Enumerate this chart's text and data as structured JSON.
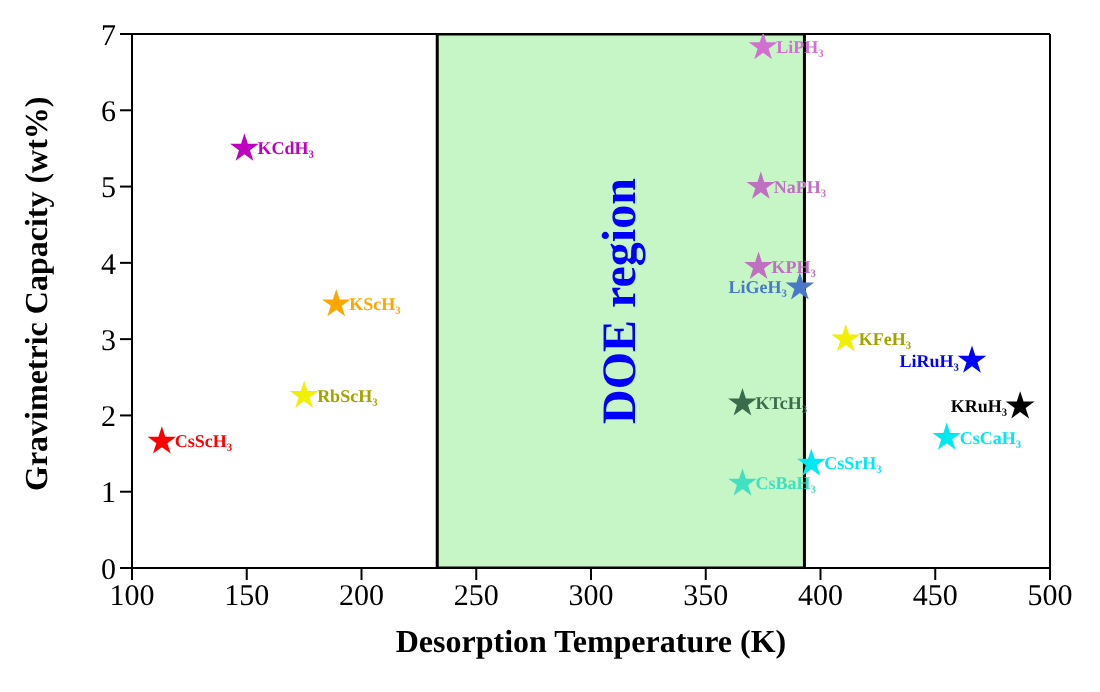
{
  "chart_data": {
    "type": "scatter",
    "xlabel": "Desorption Temperature (K)",
    "ylabel": "Gravimetric Capacity (wt%)",
    "xlim": [
      100,
      500
    ],
    "ylim": [
      0,
      7
    ],
    "xticks": [
      100,
      150,
      200,
      250,
      300,
      350,
      400,
      450,
      500
    ],
    "yticks": [
      0,
      1,
      2,
      3,
      4,
      5,
      6,
      7
    ],
    "grid": false,
    "legend": false,
    "marker": "star",
    "bands": [
      {
        "axis": "x",
        "from": 233,
        "to": 393,
        "label": "DOE region",
        "color": "#c6f5c6"
      }
    ],
    "series": [
      {
        "name": "CsScH₃",
        "color": "#ff0000",
        "x": [
          113
        ],
        "values": [
          1.66
        ]
      },
      {
        "name": "KCdH₃",
        "color": "#c000c0",
        "x": [
          149
        ],
        "values": [
          5.5
        ]
      },
      {
        "name": "KScH₃",
        "color": "#ffa500",
        "x": [
          189
        ],
        "values": [
          3.46
        ]
      },
      {
        "name": "RbScH₃",
        "color": "#f0f000",
        "x": [
          175
        ],
        "values": [
          2.26
        ]
      },
      {
        "name": "LiPH₃",
        "color": "#d070d0",
        "x": [
          375
        ],
        "values": [
          6.83
        ]
      },
      {
        "name": "NaPH₃",
        "color": "#c070c0",
        "x": [
          374
        ],
        "values": [
          5.0
        ]
      },
      {
        "name": "KPH₃",
        "color": "#c070c0",
        "x": [
          373
        ],
        "values": [
          3.95
        ]
      },
      {
        "name": "LiGeH₃",
        "color": "#4a78c8",
        "x": [
          391
        ],
        "values": [
          3.68
        ]
      },
      {
        "name": "KTcH₃",
        "color": "#3a6b4a",
        "x": [
          366
        ],
        "values": [
          2.16
        ]
      },
      {
        "name": "CsBaH₃",
        "color": "#40e0c0",
        "x": [
          366
        ],
        "values": [
          1.11
        ]
      },
      {
        "name": "CsSrH₃",
        "color": "#00e8f0",
        "x": [
          396
        ],
        "values": [
          1.37
        ]
      },
      {
        "name": "KFeH₃",
        "color": "#f0f000",
        "x": [
          411
        ],
        "values": [
          3.0
        ]
      },
      {
        "name": "LiRuH₃",
        "color": "#0000ff",
        "x": [
          466
        ],
        "values": [
          2.72
        ]
      },
      {
        "name": "KRuH₃",
        "color": "#000000",
        "x": [
          487
        ],
        "values": [
          2.12
        ]
      },
      {
        "name": "CsCaH₃",
        "color": "#00e8f0",
        "x": [
          455
        ],
        "values": [
          1.71
        ]
      }
    ]
  }
}
